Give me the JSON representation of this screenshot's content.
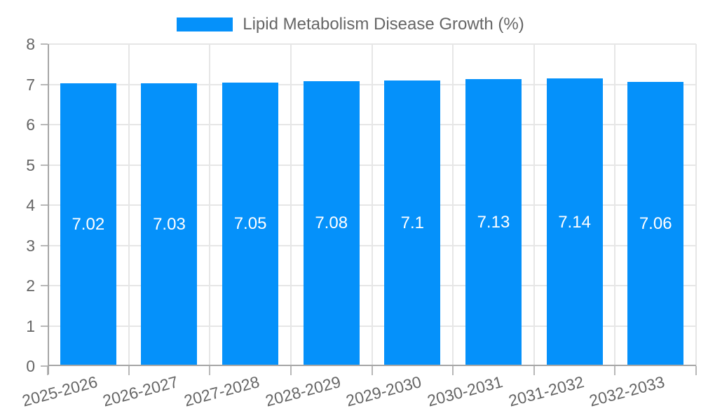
{
  "chart_data": {
    "type": "bar",
    "title": "Lipid Metabolism Disease Growth (%)",
    "categories": [
      "2025-2026",
      "2026-2027",
      "2027-2028",
      "2028-2029",
      "2029-2030",
      "2030-2031",
      "2031-2032",
      "2032-2033"
    ],
    "values": [
      7.02,
      7.03,
      7.05,
      7.08,
      7.1,
      7.13,
      7.14,
      7.06
    ],
    "bar_labels": [
      "7.02",
      "7.03",
      "7.05",
      "7.08",
      "7.1",
      "7.13",
      "7.14",
      "7.06"
    ],
    "xlabel": "",
    "ylabel": "",
    "ylim": [
      0,
      8
    ],
    "yticks": [
      0,
      1,
      2,
      3,
      4,
      5,
      6,
      7,
      8
    ],
    "grid": true,
    "legend": {
      "label": "Lipid Metabolism Disease Growth (%)",
      "position": "top-center"
    }
  },
  "colors": {
    "bar": "#0591fa",
    "bar_label_text": "#ffffff",
    "grid": "#e6e6e6",
    "axis": "#a6a6a6",
    "tick": "#b8b8b8",
    "text": "#666666",
    "background": "#ffffff"
  }
}
